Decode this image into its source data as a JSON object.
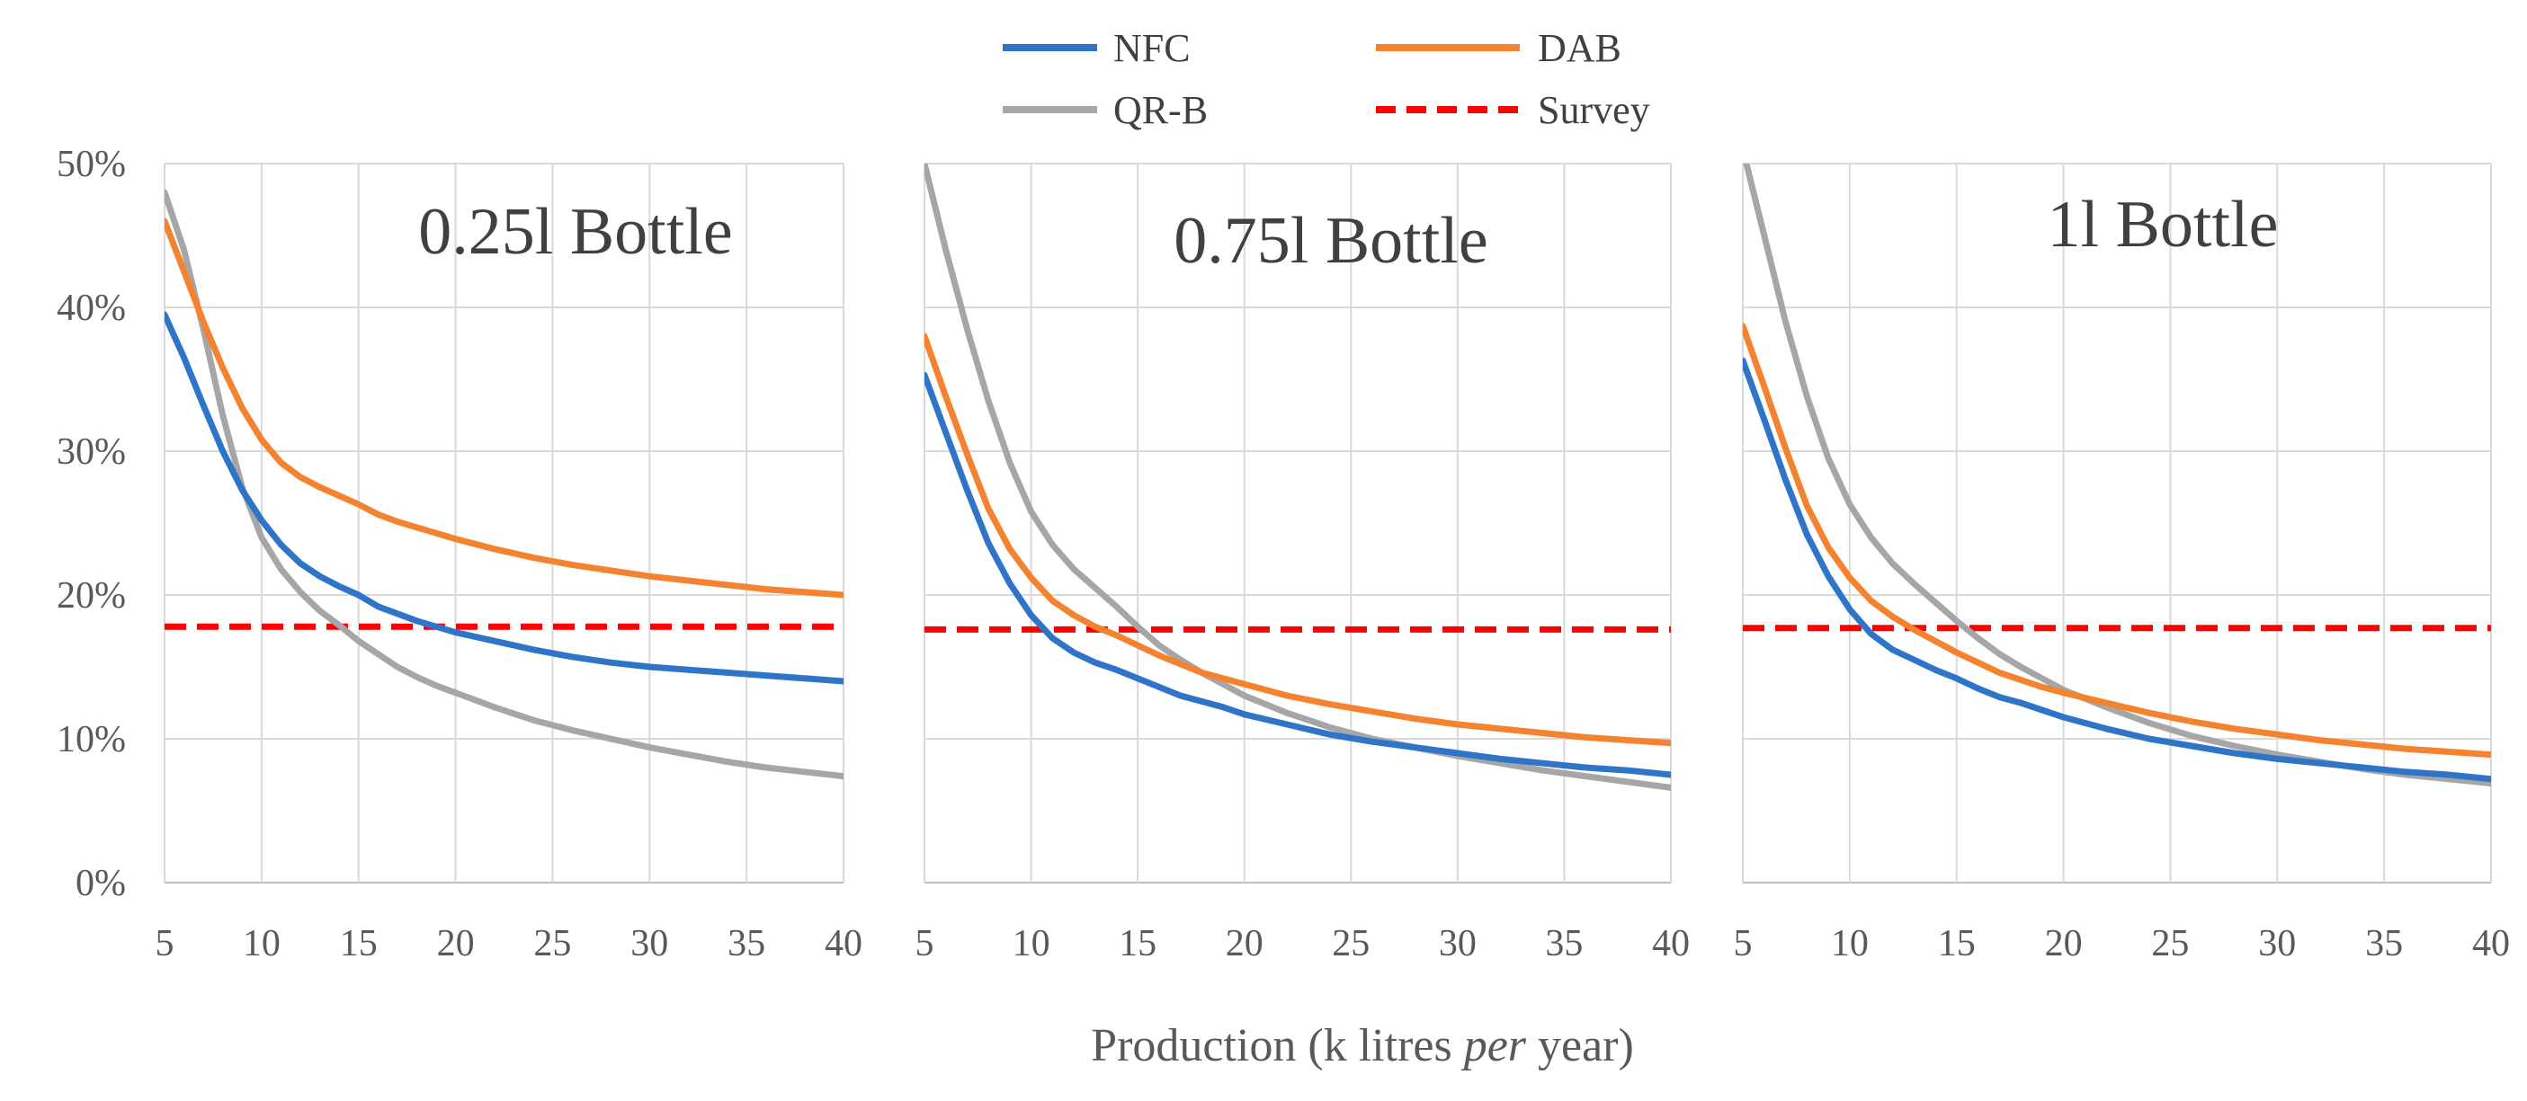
{
  "chart_data": {
    "type": "line",
    "x_axis_title_parts": [
      "Production (k litres ",
      "per",
      " year)"
    ],
    "x_ticks": [
      5,
      10,
      15,
      20,
      25,
      30,
      35,
      40
    ],
    "xlim": [
      5,
      40
    ],
    "ylim": [
      0,
      50
    ],
    "y_ticks": [
      "0%",
      "10%",
      "20%",
      "30%",
      "40%",
      "50%"
    ],
    "y_tick_values": [
      0,
      10,
      20,
      30,
      40,
      50
    ],
    "grid": true,
    "legend": {
      "placement": "top-center",
      "entries": [
        {
          "name": "NFC",
          "color": "#2e75c9",
          "dash": false
        },
        {
          "name": "DAB",
          "color": "#f5822e",
          "dash": false
        },
        {
          "name": "QR-B",
          "color": "#a6a6a6",
          "dash": false
        },
        {
          "name": "Survey",
          "color": "#ff0000",
          "dash": true
        }
      ]
    },
    "panels": [
      {
        "title": "0.25l Bottle",
        "series": [
          {
            "name": "NFC",
            "x": [
              5,
              6,
              7,
              8,
              9,
              10,
              11,
              12,
              13,
              14,
              15,
              16,
              17,
              18,
              19,
              20,
              22,
              24,
              26,
              28,
              30,
              32,
              34,
              36,
              38,
              40
            ],
            "values": [
              39.5,
              36.5,
              33.2,
              30.0,
              27.3,
              25.2,
              23.5,
              22.2,
              21.3,
              20.6,
              20.0,
              19.2,
              18.7,
              18.2,
              17.8,
              17.4,
              16.8,
              16.2,
              15.7,
              15.3,
              15.0,
              14.8,
              14.6,
              14.4,
              14.2,
              14.0
            ]
          },
          {
            "name": "DAB",
            "x": [
              5,
              6,
              7,
              8,
              9,
              10,
              11,
              12,
              13,
              14,
              15,
              16,
              17,
              18,
              19,
              20,
              22,
              24,
              26,
              28,
              30,
              32,
              34,
              36,
              38,
              40
            ],
            "values": [
              46.0,
              42.5,
              39.0,
              35.8,
              33.0,
              30.8,
              29.2,
              28.2,
              27.5,
              26.9,
              26.3,
              25.6,
              25.1,
              24.7,
              24.3,
              23.9,
              23.2,
              22.6,
              22.1,
              21.7,
              21.3,
              21.0,
              20.7,
              20.4,
              20.2,
              20.0
            ]
          },
          {
            "name": "QR-B",
            "x": [
              5,
              6,
              7,
              8,
              9,
              10,
              11,
              12,
              13,
              14,
              15,
              16,
              17,
              18,
              19,
              20,
              22,
              24,
              26,
              28,
              30,
              32,
              34,
              36,
              38,
              40
            ],
            "values": [
              48.0,
              44.0,
              38.5,
              32.5,
              27.5,
              24.0,
              21.8,
              20.2,
              18.9,
              17.9,
              16.8,
              15.9,
              15.0,
              14.3,
              13.7,
              13.2,
              12.2,
              11.3,
              10.6,
              10.0,
              9.4,
              8.9,
              8.4,
              8.0,
              7.7,
              7.4
            ]
          },
          {
            "name": "Survey",
            "x": [
              5,
              40
            ],
            "values": [
              17.8,
              17.8
            ]
          }
        ]
      },
      {
        "title": "0.75l Bottle",
        "series": [
          {
            "name": "NFC",
            "x": [
              5,
              6,
              7,
              8,
              9,
              10,
              11,
              12,
              13,
              14,
              15,
              16,
              17,
              18,
              19,
              20,
              22,
              24,
              26,
              28,
              30,
              32,
              34,
              36,
              38,
              40
            ],
            "values": [
              35.3,
              31.3,
              27.3,
              23.6,
              20.8,
              18.6,
              17.0,
              16.0,
              15.3,
              14.8,
              14.2,
              13.6,
              13.0,
              12.6,
              12.2,
              11.7,
              11.0,
              10.3,
              9.8,
              9.4,
              9.0,
              8.6,
              8.3,
              8.0,
              7.8,
              7.5
            ]
          },
          {
            "name": "DAB",
            "x": [
              5,
              6,
              7,
              8,
              9,
              10,
              11,
              12,
              13,
              14,
              15,
              16,
              17,
              18,
              19,
              20,
              22,
              24,
              26,
              28,
              30,
              32,
              34,
              36,
              38,
              40
            ],
            "values": [
              38.0,
              33.8,
              29.8,
              26.0,
              23.2,
              21.2,
              19.6,
              18.6,
              17.8,
              17.2,
              16.5,
              15.8,
              15.2,
              14.6,
              14.2,
              13.8,
              13.0,
              12.4,
              11.9,
              11.4,
              11.0,
              10.7,
              10.4,
              10.1,
              9.9,
              9.7
            ]
          },
          {
            "name": "QR-B",
            "x": [
              5,
              6,
              7,
              8,
              9,
              10,
              11,
              12,
              13,
              14,
              15,
              16,
              17,
              18,
              19,
              20,
              22,
              24,
              26,
              28,
              30,
              32,
              34,
              36,
              38,
              40
            ],
            "values": [
              50.0,
              44.0,
              38.5,
              33.5,
              29.2,
              25.8,
              23.5,
              21.8,
              20.5,
              19.2,
              17.8,
              16.5,
              15.5,
              14.6,
              13.8,
              13.0,
              11.8,
              10.8,
              10.0,
              9.4,
              8.8,
              8.3,
              7.8,
              7.4,
              7.0,
              6.6
            ]
          },
          {
            "name": "Survey",
            "x": [
              5,
              40
            ],
            "values": [
              17.6,
              17.6
            ]
          }
        ]
      },
      {
        "title": "1l Bottle",
        "series": [
          {
            "name": "NFC",
            "x": [
              5,
              6,
              7,
              8,
              9,
              10,
              11,
              12,
              13,
              14,
              15,
              16,
              17,
              18,
              19,
              20,
              22,
              24,
              26,
              28,
              30,
              32,
              34,
              36,
              38,
              40
            ],
            "values": [
              36.3,
              32.2,
              28.0,
              24.2,
              21.3,
              19.0,
              17.3,
              16.2,
              15.5,
              14.8,
              14.2,
              13.5,
              12.9,
              12.5,
              12.0,
              11.5,
              10.7,
              10.0,
              9.5,
              9.0,
              8.6,
              8.3,
              8.0,
              7.7,
              7.5,
              7.2
            ]
          },
          {
            "name": "DAB",
            "x": [
              5,
              6,
              7,
              8,
              9,
              10,
              11,
              12,
              13,
              14,
              15,
              16,
              17,
              18,
              19,
              20,
              22,
              24,
              26,
              28,
              30,
              32,
              34,
              36,
              38,
              40
            ],
            "values": [
              38.7,
              34.5,
              30.2,
              26.2,
              23.3,
              21.2,
              19.6,
              18.5,
              17.6,
              16.8,
              16.0,
              15.3,
              14.6,
              14.1,
              13.6,
              13.2,
              12.5,
              11.8,
              11.2,
              10.7,
              10.3,
              9.9,
              9.6,
              9.3,
              9.1,
              8.9
            ]
          },
          {
            "name": "QR-B",
            "x": [
              5,
              6,
              7,
              8,
              9,
              10,
              11,
              12,
              13,
              14,
              15,
              16,
              17,
              18,
              19,
              20,
              22,
              24,
              26,
              28,
              30,
              32,
              34,
              36,
              38,
              40
            ],
            "values": [
              51.0,
              45.0,
              39.0,
              33.8,
              29.5,
              26.3,
              24.0,
              22.2,
              20.8,
              19.5,
              18.2,
              17.0,
              15.9,
              15.0,
              14.2,
              13.4,
              12.2,
              11.1,
              10.2,
              9.5,
              8.9,
              8.4,
              7.9,
              7.5,
              7.2,
              6.9
            ]
          },
          {
            "name": "Survey",
            "x": [
              5,
              40
            ],
            "values": [
              17.7,
              17.7
            ]
          }
        ]
      }
    ]
  }
}
